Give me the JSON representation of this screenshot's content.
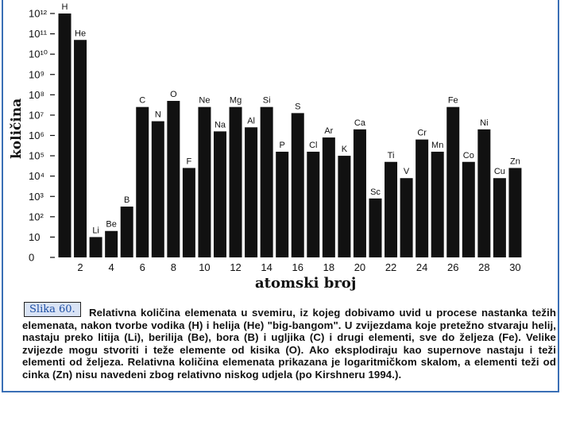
{
  "chart_data": {
    "type": "bar",
    "ylabel": "količina",
    "xlabel": "atomski broj",
    "yscale": "log",
    "ylim": [
      0,
      12
    ],
    "ytick_labels": [
      "0",
      "10",
      "10²",
      "10³",
      "10⁴",
      "10⁵",
      "10⁶",
      "10⁷",
      "10⁸",
      "10⁹",
      "10¹⁰",
      "10¹¹",
      "10¹²"
    ],
    "xtick_labels": [
      "2",
      "4",
      "6",
      "8",
      "10",
      "12",
      "14",
      "16",
      "18",
      "20",
      "22",
      "24",
      "26",
      "28",
      "30"
    ],
    "xtick_positions": [
      2,
      4,
      6,
      8,
      10,
      12,
      14,
      16,
      18,
      20,
      22,
      24,
      26,
      28,
      30
    ],
    "bar_color": "#111111",
    "bars": [
      {
        "x": 1,
        "label": "H",
        "log_value": 12.0
      },
      {
        "x": 2,
        "label": "He",
        "log_value": 10.7
      },
      {
        "x": 3,
        "label": "Li",
        "log_value": 1.0
      },
      {
        "x": 4,
        "label": "Be",
        "log_value": 1.3
      },
      {
        "x": 5,
        "label": "B",
        "log_value": 2.5
      },
      {
        "x": 6,
        "label": "C",
        "log_value": 7.4
      },
      {
        "x": 7,
        "label": "N",
        "log_value": 6.7
      },
      {
        "x": 8,
        "label": "O",
        "log_value": 7.7
      },
      {
        "x": 9,
        "label": "F",
        "log_value": 4.4
      },
      {
        "x": 10,
        "label": "Ne",
        "log_value": 7.4
      },
      {
        "x": 11,
        "label": "Na",
        "log_value": 6.2
      },
      {
        "x": 12,
        "label": "Mg",
        "log_value": 7.4
      },
      {
        "x": 13,
        "label": "Al",
        "log_value": 6.4
      },
      {
        "x": 14,
        "label": "Si",
        "log_value": 7.4
      },
      {
        "x": 15,
        "label": "P",
        "log_value": 5.2
      },
      {
        "x": 16,
        "label": "S",
        "log_value": 7.1
      },
      {
        "x": 17,
        "label": "Cl",
        "log_value": 5.2
      },
      {
        "x": 18,
        "label": "Ar",
        "log_value": 5.9
      },
      {
        "x": 19,
        "label": "K",
        "log_value": 5.0
      },
      {
        "x": 20,
        "label": "Ca",
        "log_value": 6.3
      },
      {
        "x": 21,
        "label": "Sc",
        "log_value": 2.9
      },
      {
        "x": 22,
        "label": "Ti",
        "log_value": 4.7
      },
      {
        "x": 23,
        "label": "V",
        "log_value": 3.9
      },
      {
        "x": 24,
        "label": "Cr",
        "log_value": 5.8
      },
      {
        "x": 25,
        "label": "Mn",
        "log_value": 5.2
      },
      {
        "x": 26,
        "label": "Fe",
        "log_value": 7.4
      },
      {
        "x": 27,
        "label": "Co",
        "log_value": 4.7
      },
      {
        "x": 28,
        "label": "Ni",
        "log_value": 6.3
      },
      {
        "x": 29,
        "label": "Cu",
        "log_value": 3.9
      },
      {
        "x": 30,
        "label": "Zn",
        "log_value": 4.4
      }
    ]
  },
  "figure_label": "Slika 60.",
  "caption": "Relativna količina elemenata u svemiru, iz kojeg dobivamo uvid u procese nastanka težih elemenata, nakon tvorbe vodika (H) i helija (He) \"big-bangom\". U zvijezdama koje pretežno stvaraju helij, nastaju preko litija (Li), berilija (Be), bora (B) i ugljika (C) i drugi elementi, sve do željeza (Fe). Velike zvijezde mogu stvoriti i teže elemente od kisika (O). Ako eksplodiraju kao supernove nastaju i teži elementi od željeza. Relativna količina elemenata prikazana je logaritmičkom skalom, a elementi teži od cinka (Zn) nisu navedeni zbog relativno niskog udjela (po Kirshneru 1994.)."
}
